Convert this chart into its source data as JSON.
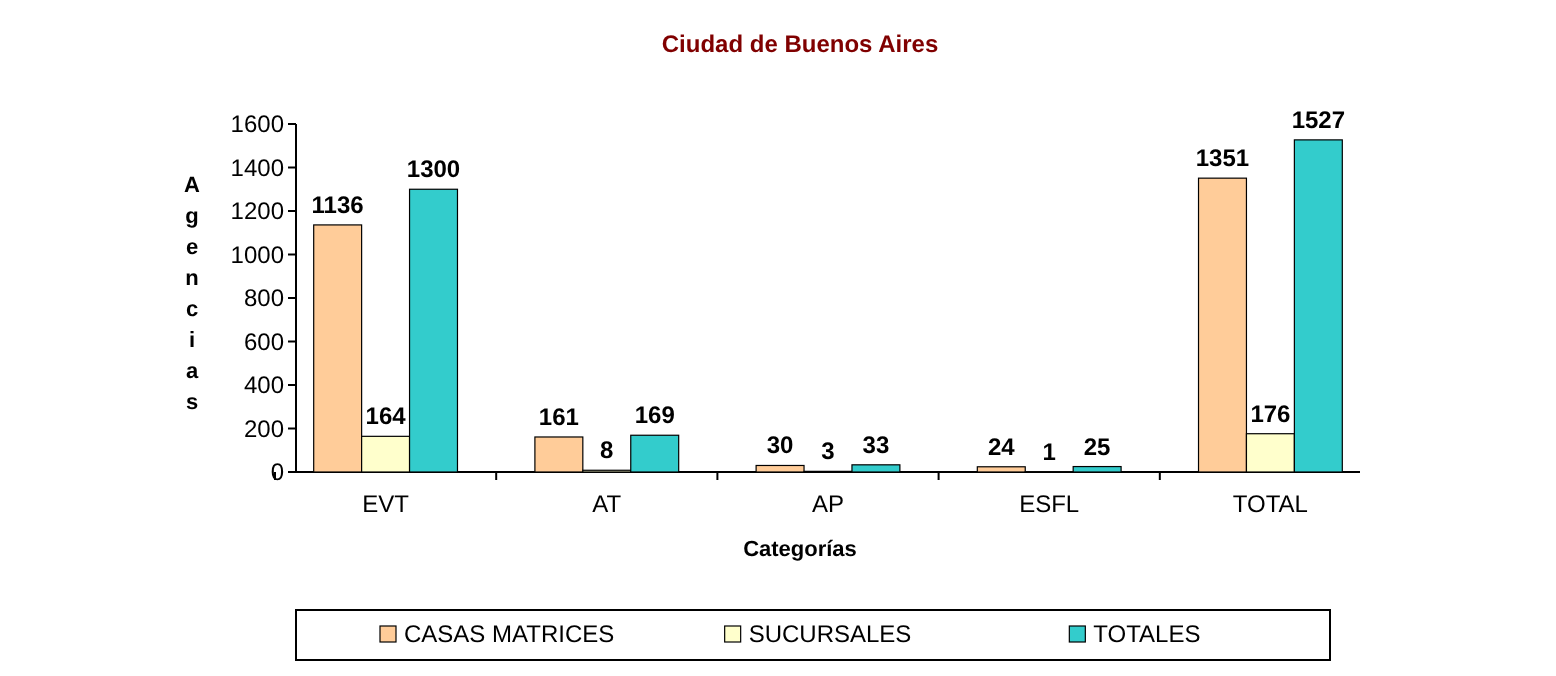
{
  "chart_data": {
    "type": "bar",
    "title": "Ciudad de Buenos Aires",
    "xlabel": "Categorías",
    "ylabel": "Agencias",
    "categories": [
      "EVT",
      "AT",
      "AP",
      "ESFL",
      "TOTAL"
    ],
    "series": [
      {
        "name": "CASAS MATRICES",
        "color": "#ffcc99",
        "values": [
          1136,
          161,
          30,
          24,
          1351
        ]
      },
      {
        "name": "SUCURSALES",
        "color": "#ffffcc",
        "values": [
          164,
          8,
          3,
          1,
          176
        ]
      },
      {
        "name": "TOTALES",
        "color": "#33cccc",
        "values": [
          1300,
          169,
          33,
          25,
          1527
        ]
      }
    ],
    "ylim": [
      0,
      1600
    ],
    "yticks": [
      0,
      200,
      400,
      600,
      800,
      1000,
      1200,
      1400,
      1600
    ],
    "data_labels": true,
    "legend": "bottom",
    "grid": false
  }
}
